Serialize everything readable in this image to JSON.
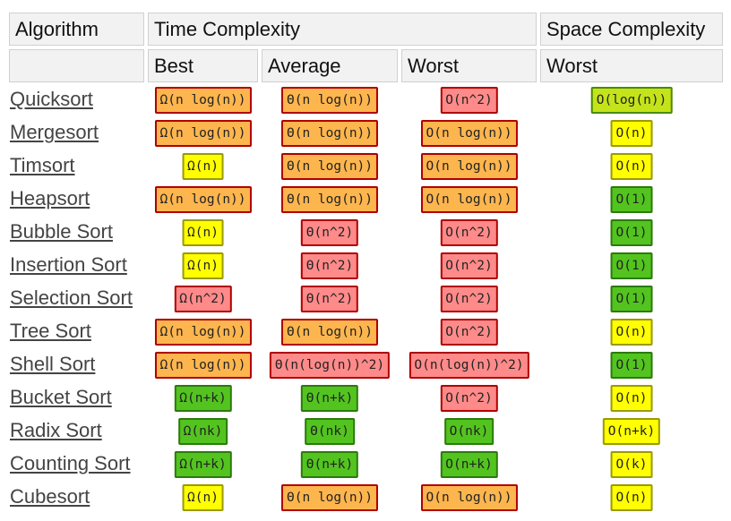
{
  "header": {
    "row1": [
      "Algorithm",
      "Time Complexity",
      "Space Complexity"
    ],
    "row2": [
      "Best",
      "Average",
      "Worst",
      "Worst"
    ]
  },
  "rows": [
    {
      "name": "Quicksort",
      "cells": [
        {
          "text": "Ω(n log(n))",
          "fill": "#fdb54e",
          "border": "#b00000"
        },
        {
          "text": "Θ(n log(n))",
          "fill": "#fdb54e",
          "border": "#b00000"
        },
        {
          "text": "O(n^2)",
          "fill": "#ff8a8a",
          "border": "#b00000"
        },
        {
          "text": "O(log(n))",
          "fill": "#c5e31a",
          "border": "#4a8a00"
        }
      ]
    },
    {
      "name": "Mergesort",
      "cells": [
        {
          "text": "Ω(n log(n))",
          "fill": "#fdb54e",
          "border": "#b00000"
        },
        {
          "text": "Θ(n log(n))",
          "fill": "#fdb54e",
          "border": "#b00000"
        },
        {
          "text": "O(n log(n))",
          "fill": "#fdb54e",
          "border": "#b00000"
        },
        {
          "text": "O(n)",
          "fill": "#ffff00",
          "border": "#9a9a00"
        }
      ]
    },
    {
      "name": "Timsort",
      "cells": [
        {
          "text": "Ω(n)",
          "fill": "#ffff00",
          "border": "#9a9a00"
        },
        {
          "text": "Θ(n log(n))",
          "fill": "#fdb54e",
          "border": "#b00000"
        },
        {
          "text": "O(n log(n))",
          "fill": "#fdb54e",
          "border": "#b00000"
        },
        {
          "text": "O(n)",
          "fill": "#ffff00",
          "border": "#9a9a00"
        }
      ]
    },
    {
      "name": "Heapsort",
      "cells": [
        {
          "text": "Ω(n log(n))",
          "fill": "#fdb54e",
          "border": "#b00000"
        },
        {
          "text": "Θ(n log(n))",
          "fill": "#fdb54e",
          "border": "#b00000"
        },
        {
          "text": "O(n log(n))",
          "fill": "#fdb54e",
          "border": "#b00000"
        },
        {
          "text": "O(1)",
          "fill": "#53c41f",
          "border": "#2b7a0b"
        }
      ]
    },
    {
      "name": "Bubble Sort",
      "cells": [
        {
          "text": "Ω(n)",
          "fill": "#ffff00",
          "border": "#9a9a00"
        },
        {
          "text": "Θ(n^2)",
          "fill": "#ff8a8a",
          "border": "#b00000"
        },
        {
          "text": "O(n^2)",
          "fill": "#ff8a8a",
          "border": "#b00000"
        },
        {
          "text": "O(1)",
          "fill": "#53c41f",
          "border": "#2b7a0b"
        }
      ]
    },
    {
      "name": "Insertion Sort",
      "cells": [
        {
          "text": "Ω(n)",
          "fill": "#ffff00",
          "border": "#9a9a00"
        },
        {
          "text": "Θ(n^2)",
          "fill": "#ff8a8a",
          "border": "#b00000"
        },
        {
          "text": "O(n^2)",
          "fill": "#ff8a8a",
          "border": "#b00000"
        },
        {
          "text": "O(1)",
          "fill": "#53c41f",
          "border": "#2b7a0b"
        }
      ]
    },
    {
      "name": "Selection Sort",
      "cells": [
        {
          "text": "Ω(n^2)",
          "fill": "#ff8a8a",
          "border": "#b00000"
        },
        {
          "text": "Θ(n^2)",
          "fill": "#ff8a8a",
          "border": "#b00000"
        },
        {
          "text": "O(n^2)",
          "fill": "#ff8a8a",
          "border": "#b00000"
        },
        {
          "text": "O(1)",
          "fill": "#53c41f",
          "border": "#2b7a0b"
        }
      ]
    },
    {
      "name": "Tree Sort",
      "cells": [
        {
          "text": "Ω(n log(n))",
          "fill": "#fdb54e",
          "border": "#b00000"
        },
        {
          "text": "Θ(n log(n))",
          "fill": "#fdb54e",
          "border": "#b00000"
        },
        {
          "text": "O(n^2)",
          "fill": "#ff8a8a",
          "border": "#b00000"
        },
        {
          "text": "O(n)",
          "fill": "#ffff00",
          "border": "#9a9a00"
        }
      ]
    },
    {
      "name": "Shell Sort",
      "cells": [
        {
          "text": "Ω(n log(n))",
          "fill": "#fdb54e",
          "border": "#b00000"
        },
        {
          "text": "Θ(n(log(n))^2)",
          "fill": "#ff8a8a",
          "border": "#b00000"
        },
        {
          "text": "O(n(log(n))^2)",
          "fill": "#ff8a8a",
          "border": "#b00000"
        },
        {
          "text": "O(1)",
          "fill": "#53c41f",
          "border": "#2b7a0b"
        }
      ]
    },
    {
      "name": "Bucket Sort",
      "cells": [
        {
          "text": "Ω(n+k)",
          "fill": "#53c41f",
          "border": "#2b7a0b"
        },
        {
          "text": "Θ(n+k)",
          "fill": "#53c41f",
          "border": "#2b7a0b"
        },
        {
          "text": "O(n^2)",
          "fill": "#ff8a8a",
          "border": "#b00000"
        },
        {
          "text": "O(n)",
          "fill": "#ffff00",
          "border": "#9a9a00"
        }
      ]
    },
    {
      "name": "Radix Sort",
      "cells": [
        {
          "text": "Ω(nk)",
          "fill": "#53c41f",
          "border": "#2b7a0b"
        },
        {
          "text": "Θ(nk)",
          "fill": "#53c41f",
          "border": "#2b7a0b"
        },
        {
          "text": "O(nk)",
          "fill": "#53c41f",
          "border": "#2b7a0b"
        },
        {
          "text": "O(n+k)",
          "fill": "#ffff00",
          "border": "#9a9a00"
        }
      ]
    },
    {
      "name": "Counting Sort",
      "cells": [
        {
          "text": "Ω(n+k)",
          "fill": "#53c41f",
          "border": "#2b7a0b"
        },
        {
          "text": "Θ(n+k)",
          "fill": "#53c41f",
          "border": "#2b7a0b"
        },
        {
          "text": "O(n+k)",
          "fill": "#53c41f",
          "border": "#2b7a0b"
        },
        {
          "text": "O(k)",
          "fill": "#ffff00",
          "border": "#9a9a00"
        }
      ]
    },
    {
      "name": "Cubesort",
      "cells": [
        {
          "text": "Ω(n)",
          "fill": "#ffff00",
          "border": "#9a9a00"
        },
        {
          "text": "Θ(n log(n))",
          "fill": "#fdb54e",
          "border": "#b00000"
        },
        {
          "text": "O(n log(n))",
          "fill": "#fdb54e",
          "border": "#b00000"
        },
        {
          "text": "O(n)",
          "fill": "#ffff00",
          "border": "#9a9a00"
        }
      ]
    }
  ]
}
